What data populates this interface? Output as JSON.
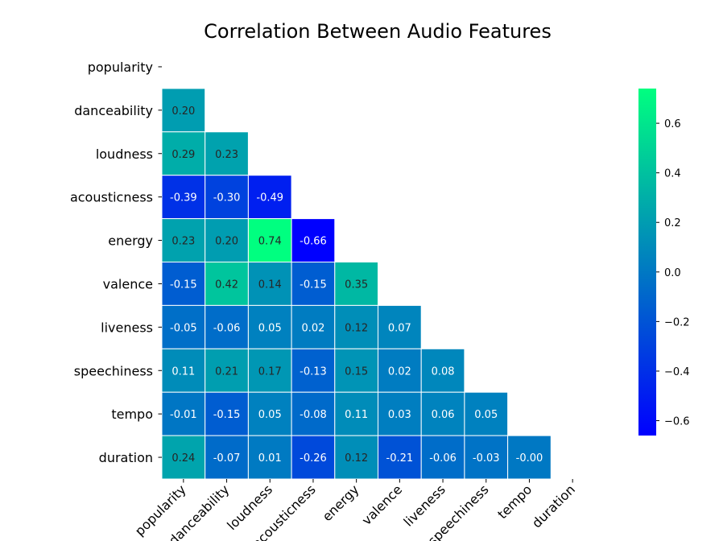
{
  "chart_data": {
    "type": "heatmap",
    "title": "Correlation Between Audio Features",
    "labels": [
      "popularity",
      "danceability",
      "loudness",
      "acousticness",
      "energy",
      "valence",
      "liveness",
      "speechiness",
      "tempo",
      "duration"
    ],
    "mask": "upper-triangle-including-diagonal",
    "values": [
      [],
      [
        0.2
      ],
      [
        0.29,
        0.23
      ],
      [
        -0.39,
        -0.3,
        -0.49
      ],
      [
        0.23,
        0.2,
        0.74,
        -0.66
      ],
      [
        -0.15,
        0.42,
        0.14,
        -0.15,
        0.35
      ],
      [
        -0.05,
        -0.06,
        0.05,
        0.02,
        0.12,
        0.07
      ],
      [
        0.11,
        0.21,
        0.17,
        -0.13,
        0.15,
        0.02,
        0.08
      ],
      [
        -0.01,
        -0.15,
        0.05,
        -0.08,
        0.11,
        0.03,
        0.06,
        0.05
      ],
      [
        0.24,
        -0.07,
        0.01,
        -0.26,
        0.12,
        -0.21,
        -0.06,
        -0.03,
        -0.0
      ]
    ],
    "value_labels": [
      [],
      [
        "0.20"
      ],
      [
        "0.29",
        "0.23"
      ],
      [
        "-0.39",
        "-0.30",
        "-0.49"
      ],
      [
        "0.23",
        "0.20",
        "0.74",
        "-0.66"
      ],
      [
        "-0.15",
        "0.42",
        "0.14",
        "-0.15",
        "0.35"
      ],
      [
        "-0.05",
        "-0.06",
        "0.05",
        "0.02",
        "0.12",
        "0.07"
      ],
      [
        "0.11",
        "0.21",
        "0.17",
        "-0.13",
        "0.15",
        "0.02",
        "0.08"
      ],
      [
        "-0.01",
        "-0.15",
        "0.05",
        "-0.08",
        "0.11",
        "0.03",
        "0.06",
        "0.05"
      ],
      [
        "0.24",
        "-0.07",
        "0.01",
        "-0.26",
        "0.12",
        "-0.21",
        "-0.06",
        "-0.03",
        "-0.00"
      ]
    ],
    "colormap": "winter",
    "colormap_colors": [
      "#0000ff",
      "#00ff80"
    ],
    "vmin": -0.66,
    "vmax": 0.74,
    "colorbar_ticks": [
      -0.6,
      -0.4,
      -0.2,
      0.0,
      0.2,
      0.4,
      0.6
    ],
    "colorbar_tick_labels": [
      "−0.6",
      "−0.4",
      "−0.2",
      "0.0",
      "0.2",
      "0.4",
      "0.6"
    ],
    "text_colors": [
      "#ffffff",
      "#262626"
    ]
  }
}
